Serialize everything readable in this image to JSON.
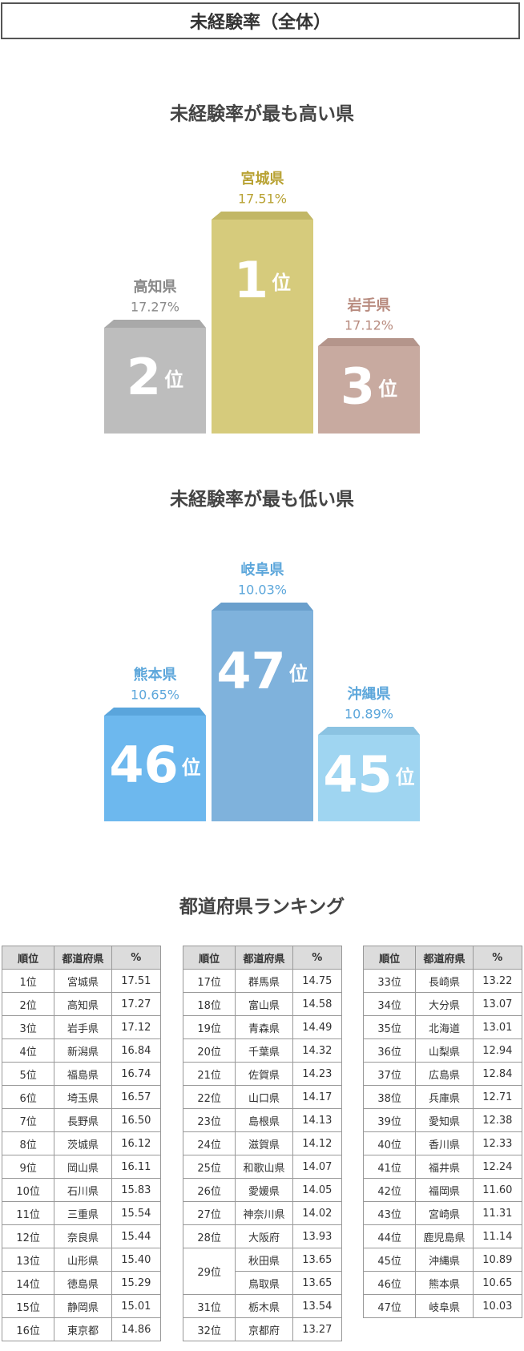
{
  "header": {
    "title": "未経験率（全体）"
  },
  "highest": {
    "title": "未経験率が最も高い県",
    "places": [
      {
        "rank": "1",
        "suffix": "位",
        "name": "宮城県",
        "rate": "17.51%"
      },
      {
        "rank": "2",
        "suffix": "位",
        "name": "高知県",
        "rate": "17.27%"
      },
      {
        "rank": "3",
        "suffix": "位",
        "name": "岩手県",
        "rate": "17.12%"
      }
    ]
  },
  "lowest": {
    "title": "未経験率が最も低い県",
    "places": [
      {
        "rank": "47",
        "suffix": "位",
        "name": "岐阜県",
        "rate": "10.03%"
      },
      {
        "rank": "46",
        "suffix": "位",
        "name": "熊本県",
        "rate": "10.65%"
      },
      {
        "rank": "45",
        "suffix": "位",
        "name": "沖縄県",
        "rate": "10.89%"
      }
    ]
  },
  "ranking": {
    "title": "都道府県ランキング",
    "columns": [
      "順位",
      "都道府県",
      "%"
    ],
    "blocks": [
      [
        {
          "rank": "1位",
          "entries": [
            [
              "宮城県",
              "17.51"
            ]
          ]
        },
        {
          "rank": "2位",
          "entries": [
            [
              "高知県",
              "17.27"
            ]
          ]
        },
        {
          "rank": "3位",
          "entries": [
            [
              "岩手県",
              "17.12"
            ]
          ]
        },
        {
          "rank": "4位",
          "entries": [
            [
              "新潟県",
              "16.84"
            ]
          ]
        },
        {
          "rank": "5位",
          "entries": [
            [
              "福島県",
              "16.74"
            ]
          ]
        },
        {
          "rank": "6位",
          "entries": [
            [
              "埼玉県",
              "16.57"
            ]
          ]
        },
        {
          "rank": "7位",
          "entries": [
            [
              "長野県",
              "16.50"
            ]
          ]
        },
        {
          "rank": "8位",
          "entries": [
            [
              "茨城県",
              "16.12"
            ]
          ]
        },
        {
          "rank": "9位",
          "entries": [
            [
              "岡山県",
              "16.11"
            ]
          ]
        },
        {
          "rank": "10位",
          "entries": [
            [
              "石川県",
              "15.83"
            ]
          ]
        },
        {
          "rank": "11位",
          "entries": [
            [
              "三重県",
              "15.54"
            ]
          ]
        },
        {
          "rank": "12位",
          "entries": [
            [
              "奈良県",
              "15.44"
            ]
          ]
        },
        {
          "rank": "13位",
          "entries": [
            [
              "山形県",
              "15.40"
            ]
          ]
        },
        {
          "rank": "14位",
          "entries": [
            [
              "徳島県",
              "15.29"
            ]
          ]
        },
        {
          "rank": "15位",
          "entries": [
            [
              "静岡県",
              "15.01"
            ]
          ]
        },
        {
          "rank": "16位",
          "entries": [
            [
              "東京都",
              "14.86"
            ]
          ]
        }
      ],
      [
        {
          "rank": "17位",
          "entries": [
            [
              "群馬県",
              "14.75"
            ]
          ]
        },
        {
          "rank": "18位",
          "entries": [
            [
              "富山県",
              "14.58"
            ]
          ]
        },
        {
          "rank": "19位",
          "entries": [
            [
              "青森県",
              "14.49"
            ]
          ]
        },
        {
          "rank": "20位",
          "entries": [
            [
              "千葉県",
              "14.32"
            ]
          ]
        },
        {
          "rank": "21位",
          "entries": [
            [
              "佐賀県",
              "14.23"
            ]
          ]
        },
        {
          "rank": "22位",
          "entries": [
            [
              "山口県",
              "14.17"
            ]
          ]
        },
        {
          "rank": "23位",
          "entries": [
            [
              "島根県",
              "14.13"
            ]
          ]
        },
        {
          "rank": "24位",
          "entries": [
            [
              "滋賀県",
              "14.12"
            ]
          ]
        },
        {
          "rank": "25位",
          "entries": [
            [
              "和歌山県",
              "14.07"
            ]
          ]
        },
        {
          "rank": "26位",
          "entries": [
            [
              "愛媛県",
              "14.05"
            ]
          ]
        },
        {
          "rank": "27位",
          "entries": [
            [
              "神奈川県",
              "14.02"
            ]
          ]
        },
        {
          "rank": "28位",
          "entries": [
            [
              "大阪府",
              "13.93"
            ]
          ]
        },
        {
          "rank": "29位",
          "entries": [
            [
              "秋田県",
              "13.65"
            ],
            [
              "鳥取県",
              "13.65"
            ]
          ]
        },
        {
          "rank": "31位",
          "entries": [
            [
              "栃木県",
              "13.54"
            ]
          ]
        },
        {
          "rank": "32位",
          "entries": [
            [
              "京都府",
              "13.27"
            ]
          ]
        }
      ],
      [
        {
          "rank": "33位",
          "entries": [
            [
              "長崎県",
              "13.22"
            ]
          ]
        },
        {
          "rank": "34位",
          "entries": [
            [
              "大分県",
              "13.07"
            ]
          ]
        },
        {
          "rank": "35位",
          "entries": [
            [
              "北海道",
              "13.01"
            ]
          ]
        },
        {
          "rank": "36位",
          "entries": [
            [
              "山梨県",
              "12.94"
            ]
          ]
        },
        {
          "rank": "37位",
          "entries": [
            [
              "広島県",
              "12.84"
            ]
          ]
        },
        {
          "rank": "38位",
          "entries": [
            [
              "兵庫県",
              "12.71"
            ]
          ]
        },
        {
          "rank": "39位",
          "entries": [
            [
              "愛知県",
              "12.38"
            ]
          ]
        },
        {
          "rank": "40位",
          "entries": [
            [
              "香川県",
              "12.33"
            ]
          ]
        },
        {
          "rank": "41位",
          "entries": [
            [
              "福井県",
              "12.24"
            ]
          ]
        },
        {
          "rank": "42位",
          "entries": [
            [
              "福岡県",
              "11.60"
            ]
          ]
        },
        {
          "rank": "43位",
          "entries": [
            [
              "宮崎県",
              "11.31"
            ]
          ]
        },
        {
          "rank": "44位",
          "entries": [
            [
              "鹿児島県",
              "11.14"
            ]
          ]
        },
        {
          "rank": "45位",
          "entries": [
            [
              "沖縄県",
              "10.89"
            ]
          ]
        },
        {
          "rank": "46位",
          "entries": [
            [
              "熊本県",
              "10.65"
            ]
          ]
        },
        {
          "rank": "47位",
          "entries": [
            [
              "岐阜県",
              "10.03"
            ]
          ]
        }
      ]
    ]
  }
}
